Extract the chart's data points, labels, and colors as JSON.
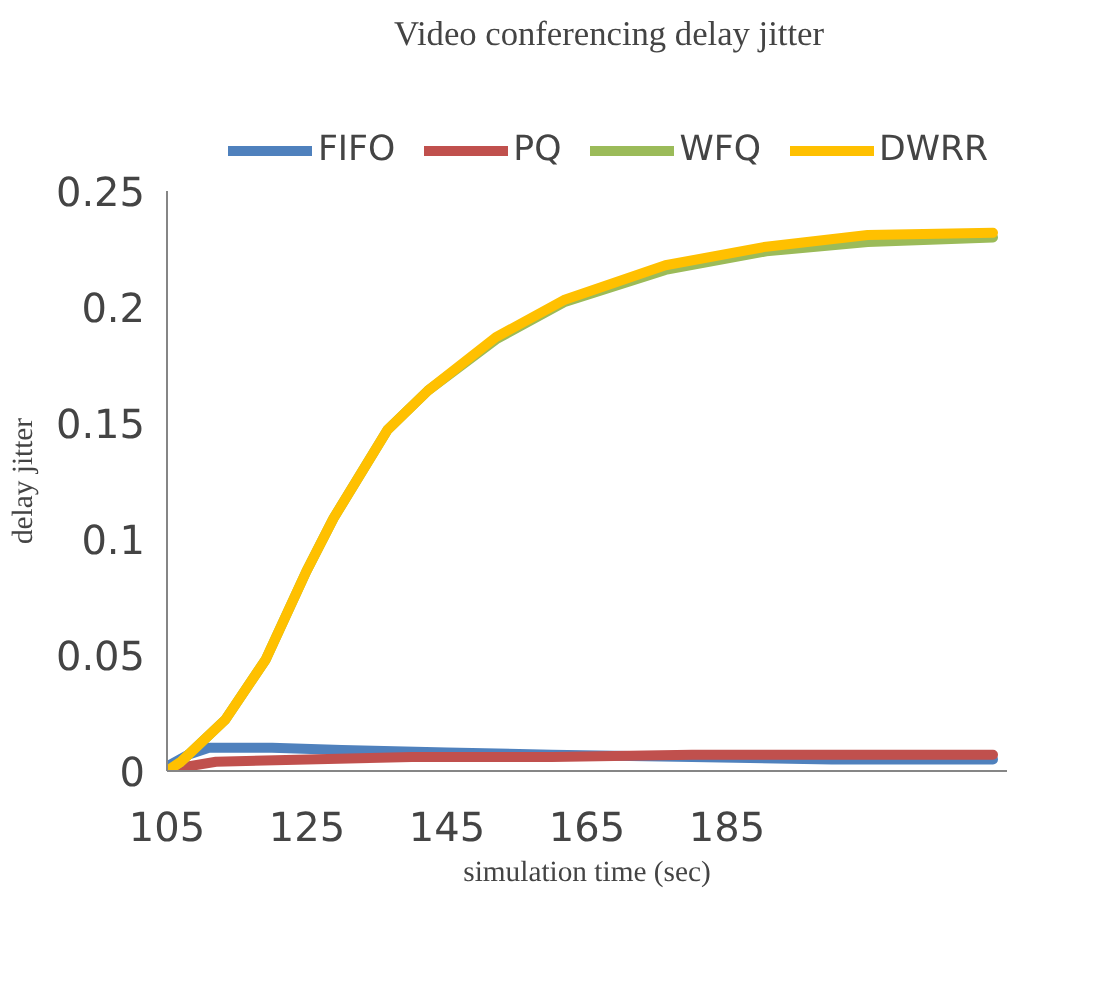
{
  "chart_data": {
    "type": "line",
    "title": "Video conferencing delay jitter",
    "xlabel": "simulation time (sec)",
    "ylabel": "delay jitter",
    "xlim": [
      105,
      225
    ],
    "xticks": [
      105,
      125,
      145,
      165,
      185
    ],
    "ylim": [
      0,
      0.25
    ],
    "yticks": [
      0,
      0.05,
      0.1,
      0.15,
      0.2,
      0.25
    ],
    "grid": false,
    "legend": "top",
    "marker": "none",
    "line_style": "solid",
    "series": [
      {
        "name": "FIFO",
        "color": "#4f81bd",
        "x": [
          105,
          108,
          111,
          120,
          130,
          145,
          160,
          180,
          200,
          223
        ],
        "values": [
          0.002,
          0.007,
          0.01,
          0.01,
          0.009,
          0.008,
          0.007,
          0.006,
          0.005,
          0.005
        ]
      },
      {
        "name": "PQ",
        "color": "#c0504d",
        "x": [
          105,
          108,
          112,
          125,
          140,
          160,
          180,
          200,
          223
        ],
        "values": [
          0,
          0.002,
          0.004,
          0.005,
          0.006,
          0.006,
          0.007,
          0.007,
          0.007
        ]
      },
      {
        "name": "WFQ",
        "color": "#9bbb59",
        "x": [
          105,
          107,
          113.3,
          119.1,
          124.9,
          128.8,
          136.5,
          142.3,
          152,
          161.7,
          176.2,
          190.6,
          205.1,
          223
        ],
        "values": [
          0,
          0.004,
          0.022,
          0.048,
          0.086,
          0.109,
          0.147,
          0.164,
          0.186,
          0.202,
          0.216,
          0.224,
          0.228,
          0.23
        ]
      },
      {
        "name": "DWRR",
        "color": "#ffc000",
        "x": [
          105,
          107,
          113.3,
          119.1,
          124.9,
          128.8,
          136.5,
          142.3,
          152,
          161.7,
          176.2,
          190.6,
          205.1,
          223
        ],
        "values": [
          0,
          0.004,
          0.022,
          0.048,
          0.086,
          0.109,
          0.147,
          0.164,
          0.187,
          0.203,
          0.218,
          0.226,
          0.231,
          0.232
        ]
      }
    ]
  }
}
